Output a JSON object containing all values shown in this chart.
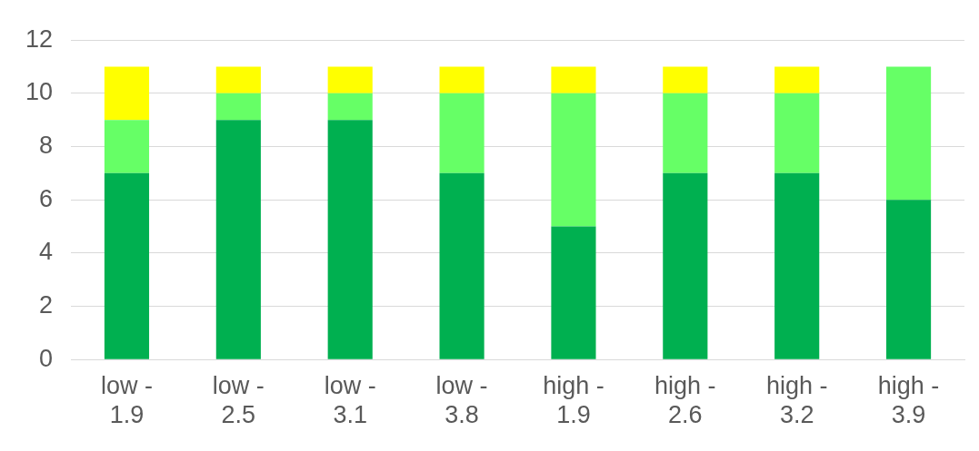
{
  "chart_data": {
    "type": "bar",
    "stacked": true,
    "categories": [
      "low - 1.9",
      "low - 2.5",
      "low - 3.1",
      "low - 3.8",
      "high - 1.9",
      "high - 2.6",
      "high - 3.2",
      "high - 3.9"
    ],
    "series": [
      {
        "color": "#00b050",
        "values": [
          7,
          9,
          9,
          7,
          5,
          7,
          7,
          6
        ]
      },
      {
        "color": "#66ff66",
        "values": [
          2,
          1,
          1,
          3,
          5,
          3,
          3,
          5
        ]
      },
      {
        "color": "#ffff00",
        "values": [
          2,
          1,
          1,
          1,
          1,
          1,
          1,
          0
        ]
      }
    ],
    "ylim": [
      0,
      12
    ],
    "yticks": [
      0,
      2,
      4,
      6,
      8,
      10,
      12
    ],
    "grid": "y"
  }
}
